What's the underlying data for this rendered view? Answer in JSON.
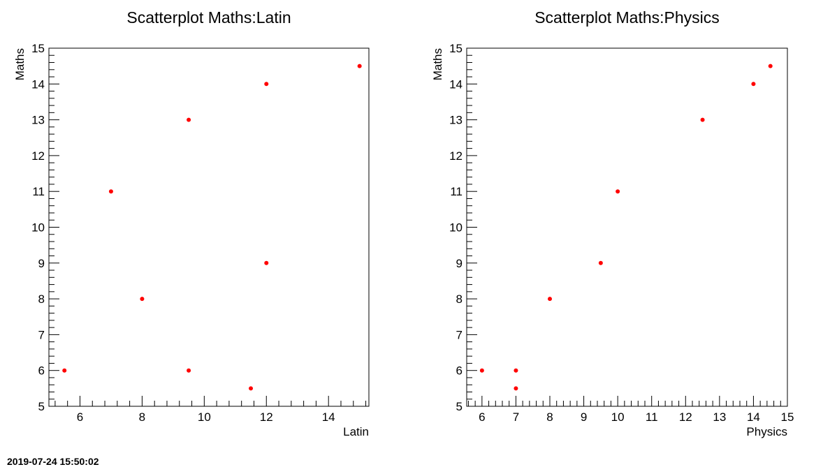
{
  "timestamp": "2019-07-24 15:50:02",
  "marker_color": "#ff0000",
  "chart_data": [
    {
      "type": "scatter",
      "title": "Scatterplot Maths:Latin",
      "xlabel": "Latin",
      "ylabel": "Maths",
      "xlim": [
        5,
        15.3
      ],
      "ylim": [
        5,
        15
      ],
      "xticks": [
        6,
        8,
        10,
        12,
        14
      ],
      "yticks": [
        5,
        6,
        7,
        8,
        9,
        10,
        11,
        12,
        13,
        14,
        15
      ],
      "grid": false,
      "points": [
        {
          "x": 5.5,
          "y": 6
        },
        {
          "x": 7,
          "y": 11
        },
        {
          "x": 8,
          "y": 8
        },
        {
          "x": 9.5,
          "y": 13
        },
        {
          "x": 9.5,
          "y": 6
        },
        {
          "x": 11.5,
          "y": 5.5
        },
        {
          "x": 12,
          "y": 14
        },
        {
          "x": 12,
          "y": 9
        },
        {
          "x": 15,
          "y": 14.5
        }
      ]
    },
    {
      "type": "scatter",
      "title": "Scatterplot Maths:Physics",
      "xlabel": "Physics",
      "ylabel": "Maths",
      "xlim": [
        5.55,
        15
      ],
      "ylim": [
        5,
        15
      ],
      "xticks": [
        6,
        7,
        8,
        9,
        10,
        11,
        12,
        13,
        14,
        15
      ],
      "yticks": [
        5,
        6,
        7,
        8,
        9,
        10,
        11,
        12,
        13,
        14,
        15
      ],
      "grid": false,
      "points": [
        {
          "x": 6,
          "y": 6
        },
        {
          "x": 7,
          "y": 6
        },
        {
          "x": 7,
          "y": 5.5
        },
        {
          "x": 8,
          "y": 8
        },
        {
          "x": 9.5,
          "y": 9
        },
        {
          "x": 10,
          "y": 11
        },
        {
          "x": 12.5,
          "y": 13
        },
        {
          "x": 14,
          "y": 14
        },
        {
          "x": 14.5,
          "y": 14.5
        }
      ]
    }
  ]
}
